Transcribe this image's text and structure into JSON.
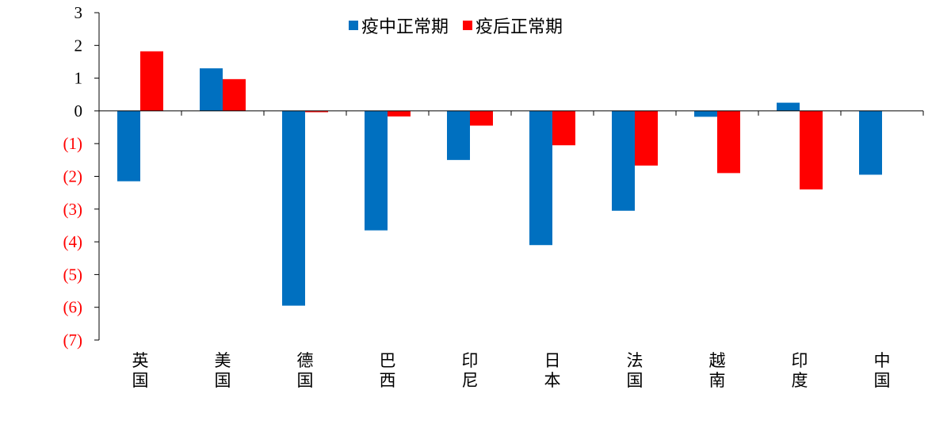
{
  "chart_data": {
    "type": "bar",
    "title": "",
    "xlabel": "",
    "ylabel": "",
    "ylim": [
      -7,
      3
    ],
    "y_ticks": [
      3,
      2,
      1,
      0,
      -1,
      -2,
      -3,
      -4,
      -5,
      -6,
      -7
    ],
    "y_tick_labels": [
      "3",
      "2",
      "1",
      "0",
      "(1)",
      "(2)",
      "(3)",
      "(4)",
      "(5)",
      "(6)",
      "(7)"
    ],
    "negative_tick_color": "#FF0000",
    "positive_tick_color": "#000000",
    "grid": false,
    "legend_position": "top-center",
    "categories": [
      "英国",
      "美国",
      "德国",
      "巴西",
      "印尼",
      "日本",
      "法国",
      "越南",
      "印度",
      "中国"
    ],
    "series": [
      {
        "name": "疫中正常期",
        "color": "#0070C0",
        "values": [
          -2.15,
          1.3,
          -5.95,
          -3.65,
          -1.5,
          -4.1,
          -3.05,
          -0.18,
          0.25,
          -1.95
        ]
      },
      {
        "name": "疫后正常期",
        "color": "#FF0000",
        "values": [
          1.82,
          0.97,
          -0.04,
          -0.17,
          -0.45,
          -1.05,
          -1.67,
          -1.9,
          -2.4,
          null
        ]
      }
    ]
  }
}
